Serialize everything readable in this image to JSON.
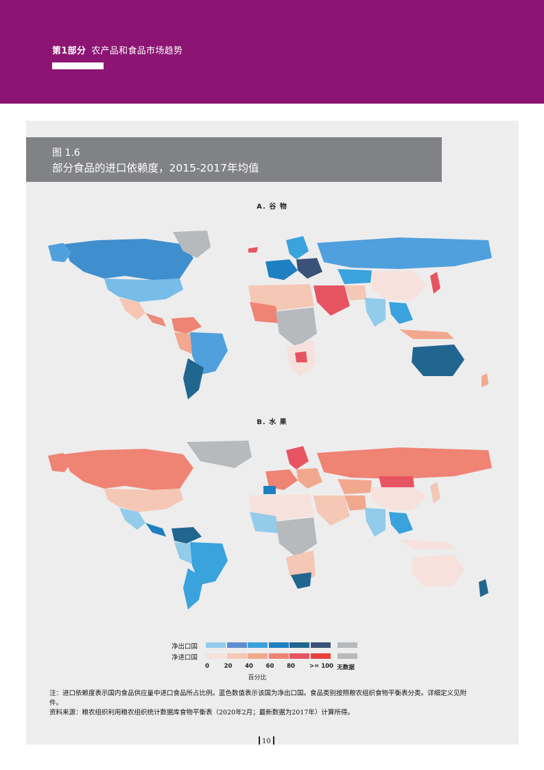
{
  "header": {
    "part_label": "第1部分",
    "part_title": "农产品和食品市场趋势",
    "background_color": "#8c1473"
  },
  "figure": {
    "number": "图 1.6",
    "title": "部分食品的进口依赖度，2015-2017年均值"
  },
  "maps": [
    {
      "label": "A. 谷 物"
    },
    {
      "label": "B. 水 果"
    }
  ],
  "legend": {
    "export_label": "净出口国",
    "import_label": "净进口国",
    "export_colors": [
      "#93cbea",
      "#5f8ed0",
      "#3aa2dc",
      "#1e7fc2",
      "#21668f",
      "#395278"
    ],
    "import_colors": [
      "#f6e1dc",
      "#f5c7b5",
      "#f2a88e",
      "#ef8374",
      "#e65461",
      "#e8413a"
    ],
    "no_data_color": "#b6babc",
    "ticks": [
      "0",
      "20",
      "40",
      "60",
      "80",
      ">= 100"
    ],
    "no_data_label": "无数据",
    "axis_label": "百分比"
  },
  "notes": {
    "note": "注：进口依赖度表示国内食品供应量中进口食品所占比例。蓝色数值表示该国为净出口国。食品类别按照粮农组织食物平衡表分类。详细定义见附件。",
    "source": "资料来源：粮农组织利用粮农组织统计数据库食物平衡表（2020年2月；最新数据为2017年）计算所得。"
  },
  "page_number": "10"
}
